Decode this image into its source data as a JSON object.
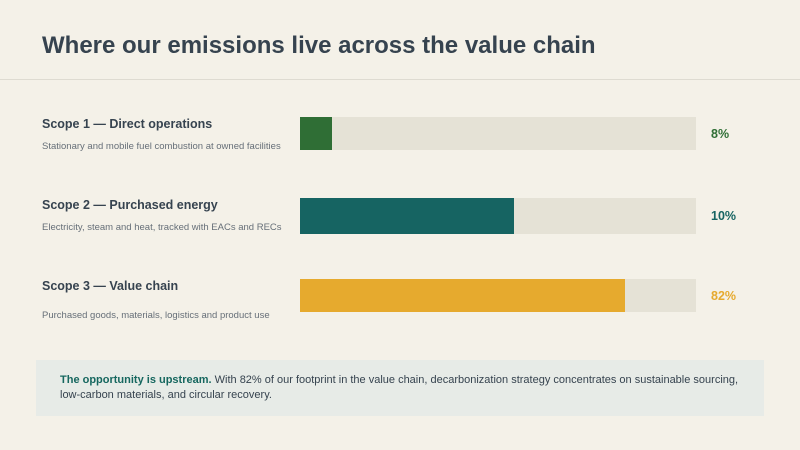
{
  "title": "Where our emissions live across the value chain",
  "chart_data": {
    "type": "bar",
    "orientation": "horizontal",
    "unit": "%",
    "xlim": [
      0,
      100
    ],
    "categories": [
      "Scope 1 — Direct operations",
      "Scope 2 — Purchased energy",
      "Scope 3 — Value chain"
    ],
    "values": [
      8,
      10,
      82
    ],
    "bars": [
      {
        "label": "Scope 1 — Direct operations",
        "description": "Stationary and mobile fuel combustion at owned facilities",
        "value": 8,
        "value_label": "8%",
        "color": "#2f6e35"
      },
      {
        "label": "Scope 2 — Purchased energy",
        "description": "Electricity, steam and heat, tracked with EACs and RECs",
        "value": 10,
        "value_label": "10%",
        "color": "#166462"
      },
      {
        "label": "Scope 3 — Value chain",
        "description": "Purchased goods, materials, logistics and product use",
        "value": 82,
        "value_label": "82%",
        "color": "#e6aa2e"
      }
    ],
    "track_color": "#e5e2d6"
  },
  "callout": {
    "lead": "The opportunity is upstream.",
    "text": " With 82% of our footprint in the value chain, decarbonization strategy concentrates on sustainable sourcing, low-carbon materials, and circular recovery."
  },
  "colors": {
    "background": "#f4f1e8",
    "title": "#36434f",
    "callout_background": "#e7ebe7",
    "callout_accent": "#16675f"
  }
}
